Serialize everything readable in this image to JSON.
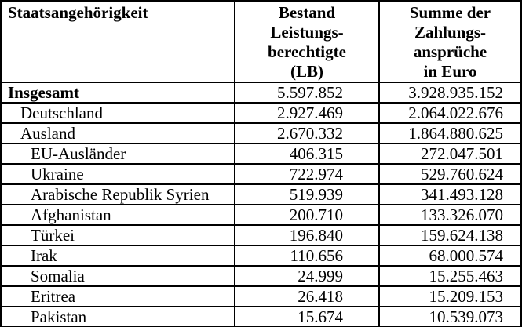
{
  "colors": {
    "background": "#ffffff",
    "border": "#000000",
    "text": "#000000"
  },
  "table": {
    "header": {
      "col1": "Staatsangehörigkeit",
      "col2": "Bestand\nLeistungs-\nberechtigte\n(LB)",
      "col3": "Summe der\nZahlungs-\nansprüche\nin Euro"
    },
    "rows": [
      {
        "label": "Insgesamt",
        "indent": 0,
        "bold": true,
        "lb": "5.597.852",
        "euro": "3.928.935.152"
      },
      {
        "label": "Deutschland",
        "indent": 1,
        "bold": false,
        "lb": "2.927.469",
        "euro": "2.064.022.676"
      },
      {
        "label": "Ausland",
        "indent": 1,
        "bold": false,
        "lb": "2.670.332",
        "euro": "1.864.880.625"
      },
      {
        "label": "EU-Ausländer",
        "indent": 2,
        "bold": false,
        "lb": "406.315",
        "euro": "272.047.501"
      },
      {
        "label": "Ukraine",
        "indent": 2,
        "bold": false,
        "lb": "722.974",
        "euro": "529.760.624"
      },
      {
        "label": "Arabische Republik Syrien",
        "indent": 2,
        "bold": false,
        "lb": "519.939",
        "euro": "341.493.128"
      },
      {
        "label": "Afghanistan",
        "indent": 2,
        "bold": false,
        "lb": "200.710",
        "euro": "133.326.070"
      },
      {
        "label": "Türkei",
        "indent": 2,
        "bold": false,
        "lb": "196.840",
        "euro": "159.624.138"
      },
      {
        "label": "Irak",
        "indent": 2,
        "bold": false,
        "lb": "110.656",
        "euro": "68.000.574"
      },
      {
        "label": "Somalia",
        "indent": 2,
        "bold": false,
        "lb": "24.999",
        "euro": "15.255.463"
      },
      {
        "label": "Eritrea",
        "indent": 2,
        "bold": false,
        "lb": "26.418",
        "euro": "15.209.153"
      },
      {
        "label": "Pakistan",
        "indent": 2,
        "bold": false,
        "lb": "15.674",
        "euro": "10.539.073"
      }
    ]
  },
  "chart_data": {
    "type": "table",
    "columns": [
      "Staatsangehörigkeit",
      "Bestand Leistungsberechtigte (LB)",
      "Summe der Zahlungsansprüche in Euro"
    ],
    "rows": [
      [
        "Insgesamt",
        5597852,
        3928935152
      ],
      [
        "Deutschland",
        2927469,
        2064022676
      ],
      [
        "Ausland",
        2670332,
        1864880625
      ],
      [
        "EU-Ausländer",
        406315,
        272047501
      ],
      [
        "Ukraine",
        722974,
        529760624
      ],
      [
        "Arabische Republik Syrien",
        519939,
        341493128
      ],
      [
        "Afghanistan",
        200710,
        133326070
      ],
      [
        "Türkei",
        196840,
        159624138
      ],
      [
        "Irak",
        110656,
        68000574
      ],
      [
        "Somalia",
        24999,
        15255463
      ],
      [
        "Eritrea",
        26418,
        15209153
      ],
      [
        "Pakistan",
        15674,
        10539073
      ]
    ]
  }
}
